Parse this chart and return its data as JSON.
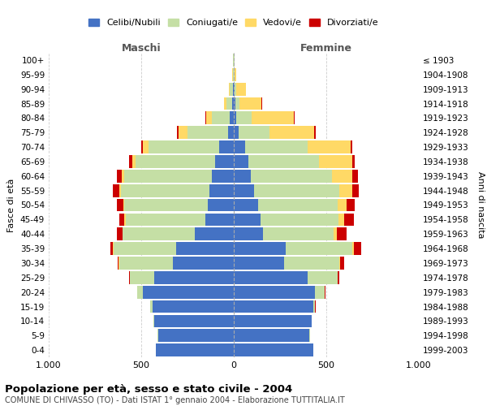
{
  "age_groups": [
    "0-4",
    "5-9",
    "10-14",
    "15-19",
    "20-24",
    "25-29",
    "30-34",
    "35-39",
    "40-44",
    "45-49",
    "50-54",
    "55-59",
    "60-64",
    "65-69",
    "70-74",
    "75-79",
    "80-84",
    "85-89",
    "90-94",
    "95-99",
    "100+"
  ],
  "birth_years": [
    "1999-2003",
    "1994-1998",
    "1989-1993",
    "1984-1988",
    "1979-1983",
    "1974-1978",
    "1969-1973",
    "1964-1968",
    "1959-1963",
    "1954-1958",
    "1949-1953",
    "1944-1948",
    "1939-1943",
    "1934-1938",
    "1929-1933",
    "1924-1928",
    "1919-1923",
    "1914-1918",
    "1909-1913",
    "1904-1908",
    "≤ 1903"
  ],
  "maschi": {
    "celibi": [
      420,
      410,
      430,
      440,
      490,
      430,
      330,
      310,
      210,
      155,
      140,
      130,
      120,
      100,
      80,
      30,
      20,
      8,
      5,
      2,
      2
    ],
    "coniugati": [
      1,
      2,
      3,
      10,
      30,
      130,
      290,
      340,
      390,
      430,
      450,
      480,
      470,
      430,
      380,
      220,
      100,
      30,
      15,
      3,
      2
    ],
    "vedovi": [
      0,
      0,
      0,
      0,
      0,
      1,
      1,
      2,
      3,
      5,
      8,
      10,
      15,
      20,
      30,
      50,
      30,
      15,
      5,
      2,
      0
    ],
    "divorziati": [
      0,
      0,
      0,
      1,
      2,
      5,
      8,
      15,
      30,
      30,
      35,
      35,
      25,
      15,
      8,
      5,
      3,
      0,
      0,
      0,
      0
    ]
  },
  "femmine": {
    "nubili": [
      430,
      410,
      420,
      430,
      440,
      400,
      270,
      280,
      160,
      145,
      130,
      110,
      90,
      80,
      60,
      25,
      15,
      10,
      5,
      2,
      2
    ],
    "coniugate": [
      1,
      1,
      2,
      10,
      50,
      160,
      300,
      360,
      380,
      420,
      430,
      460,
      440,
      380,
      340,
      170,
      80,
      20,
      10,
      3,
      2
    ],
    "vedove": [
      0,
      0,
      0,
      0,
      1,
      3,
      5,
      10,
      15,
      30,
      50,
      70,
      110,
      180,
      230,
      240,
      230,
      120,
      50,
      8,
      2
    ],
    "divorziate": [
      0,
      0,
      0,
      1,
      3,
      8,
      20,
      40,
      55,
      55,
      45,
      35,
      30,
      15,
      12,
      8,
      5,
      3,
      2,
      0,
      0
    ]
  },
  "colors": {
    "celibi": "#4472c4",
    "coniugati": "#c5dfa5",
    "vedovi": "#ffd966",
    "divorziati": "#cc0000"
  },
  "title": "Popolazione per età, sesso e stato civile - 2004",
  "subtitle": "COMUNE DI CHIVASSO (TO) - Dati ISTAT 1° gennaio 2004 - Elaborazione TUTTITALIA.IT",
  "xlabel_left": "Maschi",
  "xlabel_right": "Femmine",
  "ylabel_left": "Fasce di età",
  "ylabel_right": "Anni di nascita",
  "xlim": 1000,
  "background_color": "#ffffff",
  "grid_color": "#cccccc"
}
